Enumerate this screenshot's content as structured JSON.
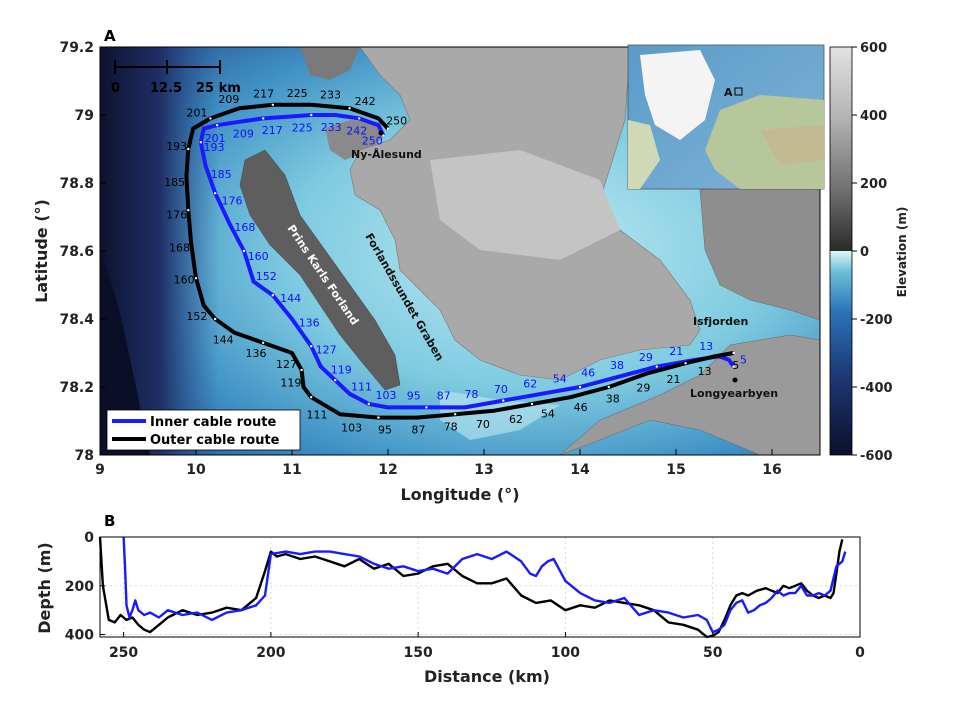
{
  "panel_a": {
    "panel_label": "A",
    "xlabel": "Longitude (°)",
    "ylabel": "Latitude (°)",
    "colorbar_label": "Elevation (m)",
    "colorbar_ticks": [
      "600",
      "400",
      "200",
      "0",
      "-200",
      "-400",
      "-600"
    ],
    "places": {
      "ny_alesund": "Ny-Ålesund",
      "isfjorden": "Isfjorden",
      "longyearbyen": "Longyearbyen",
      "prins_karls_forland": "Prins Karls Forland",
      "graben": "Forlandssundet Graben",
      "inset_marker": "A"
    },
    "scale_bar": {
      "labels": [
        "0",
        "12.5",
        "25 km"
      ]
    },
    "legend": {
      "inner": "Inner cable route",
      "outer": "Outer cable route"
    },
    "colors": {
      "inner": "#1a1aff",
      "outer": "#000000",
      "land": "#8a8a8a",
      "shallow": "#d8f4f8",
      "deep": "#1a2a5a"
    },
    "inner_km_labels": [
      "250",
      "242",
      "233",
      "225",
      "217",
      "209",
      "201",
      "193",
      "185",
      "176",
      "168",
      "160",
      "152",
      "144",
      "136",
      "127",
      "119",
      "111",
      "103",
      "95",
      "87",
      "78",
      "70",
      "62",
      "54",
      "46",
      "38",
      "29",
      "21",
      "13",
      "5"
    ],
    "outer_km_labels": [
      "250",
      "242",
      "233",
      "225",
      "217",
      "209",
      "201",
      "193",
      "185",
      "176",
      "168",
      "160",
      "152",
      "144",
      "136",
      "127",
      "119",
      "111",
      "103",
      "95",
      "87",
      "78",
      "70",
      "62",
      "54",
      "46",
      "38",
      "29",
      "21",
      "13",
      "5"
    ]
  },
  "panel_b": {
    "panel_label": "B",
    "xlabel": "Distance (km)",
    "ylabel": "Depth (m)"
  },
  "chart_data": [
    {
      "type": "line",
      "panel": "A",
      "xlabel": "Longitude (°)",
      "ylabel": "Latitude (°)",
      "xlim": [
        9,
        16.5
      ],
      "ylim": [
        78,
        79.2
      ],
      "xticks": [
        9,
        10,
        11,
        12,
        13,
        14,
        15,
        16
      ],
      "yticks": [
        78,
        78.2,
        78.4,
        78.6,
        78.8,
        79,
        79.2
      ],
      "series": [
        {
          "name": "Inner cable route",
          "color": "#1a1aff",
          "lon": [
            11.95,
            11.9,
            11.7,
            11.45,
            11.2,
            10.95,
            10.7,
            10.45,
            10.22,
            10.08,
            10.05,
            10.1,
            10.2,
            10.35,
            10.5,
            10.6,
            10.8,
            11.0,
            11.2,
            11.3,
            11.45,
            11.6,
            11.8,
            12.0,
            12.4,
            12.8,
            13.2,
            13.6,
            14.0,
            14.4,
            14.8,
            15.2,
            15.45,
            15.55,
            15.6
          ],
          "lat": [
            78.94,
            78.97,
            78.99,
            79.0,
            79.0,
            78.995,
            78.99,
            78.98,
            78.97,
            78.96,
            78.92,
            78.85,
            78.77,
            78.68,
            78.6,
            78.51,
            78.47,
            78.4,
            78.32,
            78.26,
            78.22,
            78.18,
            78.15,
            78.14,
            78.14,
            78.14,
            78.16,
            78.18,
            78.2,
            78.23,
            78.26,
            78.28,
            78.29,
            78.28,
            78.26
          ]
        },
        {
          "name": "Outer cable route",
          "color": "#000000",
          "lon": [
            12.0,
            11.9,
            11.6,
            11.2,
            10.8,
            10.45,
            10.15,
            9.97,
            9.92,
            9.9,
            9.92,
            9.95,
            10.0,
            10.08,
            10.2,
            10.4,
            10.7,
            11.0,
            11.1,
            11.12,
            11.2,
            11.5,
            11.9,
            12.3,
            12.7,
            13.1,
            13.5,
            13.9,
            14.3,
            14.7,
            15.1,
            15.4,
            15.6
          ],
          "lat": [
            78.96,
            78.99,
            79.02,
            79.03,
            79.03,
            79.02,
            78.99,
            78.96,
            78.9,
            78.82,
            78.72,
            78.62,
            78.52,
            78.44,
            78.4,
            78.36,
            78.33,
            78.3,
            78.25,
            78.2,
            78.17,
            78.12,
            78.11,
            78.11,
            78.12,
            78.13,
            78.15,
            78.17,
            78.2,
            78.24,
            78.27,
            78.29,
            78.3
          ]
        }
      ]
    },
    {
      "type": "line",
      "panel": "B",
      "xlabel": "Distance (km)",
      "ylabel": "Depth (m)",
      "xlim": [
        258,
        0
      ],
      "ylim": [
        410,
        0
      ],
      "xticks": [
        250,
        200,
        150,
        100,
        50,
        0
      ],
      "yticks": [
        0,
        200,
        400
      ],
      "grid": true,
      "series": [
        {
          "name": "Inner cable route",
          "color": "#1a1aff",
          "x": [
            250,
            249.5,
            249,
            248,
            247,
            246,
            245,
            243,
            241,
            238,
            235,
            230,
            225,
            220,
            215,
            210,
            205,
            202,
            200,
            195,
            190,
            185,
            180,
            175,
            170,
            165,
            160,
            155,
            150,
            145,
            140,
            135,
            130,
            125,
            120,
            115,
            112,
            110,
            108,
            106,
            104,
            100,
            95,
            90,
            85,
            80,
            75,
            70,
            65,
            60,
            55,
            52,
            50,
            48,
            46,
            44,
            42,
            40,
            38,
            36,
            34,
            32,
            30,
            28,
            26,
            24,
            22,
            20,
            18,
            16,
            14,
            12,
            10,
            8,
            6,
            5
          ],
          "y": [
            0,
            120,
            280,
            330,
            300,
            260,
            300,
            320,
            310,
            330,
            300,
            320,
            310,
            340,
            310,
            300,
            280,
            240,
            70,
            60,
            70,
            60,
            60,
            70,
            80,
            110,
            130,
            120,
            140,
            130,
            150,
            90,
            70,
            90,
            60,
            100,
            150,
            160,
            120,
            100,
            90,
            180,
            230,
            260,
            270,
            250,
            320,
            300,
            310,
            330,
            320,
            340,
            390,
            380,
            360,
            300,
            270,
            260,
            310,
            300,
            280,
            270,
            250,
            220,
            240,
            230,
            230,
            200,
            240,
            240,
            230,
            240,
            220,
            120,
            100,
            60
          ],
          "y_shown": "Depth (m)"
        },
        {
          "name": "Outer cable route",
          "color": "#000000",
          "x": [
            258,
            257,
            255,
            253,
            251,
            249,
            247,
            245,
            243,
            241,
            239,
            237,
            235,
            230,
            225,
            220,
            215,
            210,
            205,
            202,
            200,
            198,
            195,
            190,
            185,
            180,
            175,
            170,
            165,
            160,
            155,
            150,
            145,
            140,
            135,
            130,
            125,
            120,
            115,
            110,
            105,
            100,
            95,
            90,
            85,
            80,
            75,
            70,
            65,
            60,
            55,
            52,
            50,
            48,
            46,
            44,
            42,
            40,
            38,
            35,
            32,
            30,
            28,
            26,
            24,
            22,
            20,
            18,
            16,
            14,
            12,
            10,
            9,
            8,
            7,
            6
          ],
          "y": [
            0,
            200,
            340,
            350,
            320,
            340,
            330,
            360,
            380,
            390,
            370,
            350,
            330,
            300,
            320,
            310,
            290,
            300,
            250,
            140,
            60,
            80,
            70,
            90,
            80,
            100,
            120,
            90,
            130,
            110,
            160,
            150,
            120,
            110,
            160,
            190,
            190,
            170,
            240,
            270,
            260,
            300,
            280,
            290,
            260,
            270,
            280,
            300,
            350,
            360,
            380,
            410,
            405,
            390,
            340,
            280,
            240,
            230,
            240,
            220,
            210,
            220,
            230,
            200,
            210,
            200,
            190,
            220,
            240,
            250,
            240,
            250,
            230,
            150,
            60,
            10
          ]
        }
      ]
    }
  ]
}
